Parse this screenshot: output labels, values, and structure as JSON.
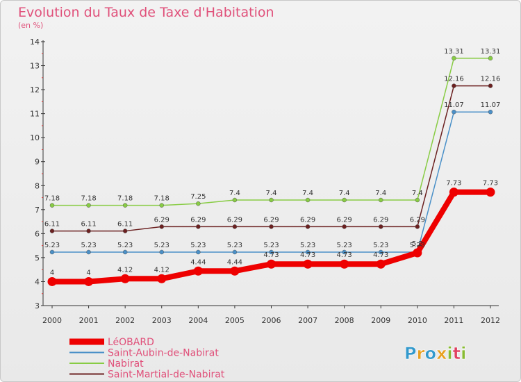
{
  "title": "Evolution du Taux de Taxe d'Habitation",
  "subtitle": "(en %)",
  "logo": {
    "text": "Proxiti",
    "colors": [
      "#3399cc",
      "#e8a020",
      "#3399cc",
      "#e8a020",
      "#88bb33",
      "#e04060",
      "#88bb33"
    ]
  },
  "chart_data": {
    "type": "line",
    "title": "Evolution du Taux de Taxe d'Habitation",
    "ylabel": "(en %)",
    "xlabel": "",
    "x": [
      "2000",
      "2001",
      "2002",
      "2003",
      "2004",
      "2005",
      "2006",
      "2007",
      "2008",
      "2009",
      "2010",
      "2011",
      "2012"
    ],
    "ylim": [
      3,
      14
    ],
    "yticks": [
      3,
      4,
      5,
      6,
      7,
      8,
      9,
      10,
      11,
      12,
      13,
      14
    ],
    "grid": false,
    "legend": "bottom-left",
    "series": [
      {
        "name": "LéOBARD",
        "color": "#ee0000",
        "values": [
          4,
          4,
          4.12,
          4.12,
          4.44,
          4.44,
          4.73,
          4.73,
          4.73,
          4.73,
          5.2,
          7.73,
          7.73
        ],
        "labels": [
          "4",
          "4",
          "4.12",
          "4.12",
          "4.44",
          "4.44",
          "4.73",
          "4.73",
          "4.73",
          "4.73",
          "5.2",
          "7.73",
          "7.73"
        ]
      },
      {
        "name": "Saint-Aubin-de-Nabirat",
        "color": "#4a90c8",
        "values": [
          5.23,
          5.23,
          5.23,
          5.23,
          5.23,
          5.23,
          5.23,
          5.23,
          5.23,
          5.23,
          5.23,
          11.07,
          11.07
        ],
        "labels": [
          "5.23",
          "5.23",
          "5.23",
          "5.23",
          "5.23",
          "5.23",
          "5.23",
          "5.23",
          "5.23",
          "5.23",
          "5.23",
          "11.07",
          "11.07"
        ]
      },
      {
        "name": "Nabirat",
        "color": "#88cc44",
        "values": [
          7.18,
          7.18,
          7.18,
          7.18,
          7.25,
          7.4,
          7.4,
          7.4,
          7.4,
          7.4,
          7.4,
          13.31,
          13.31
        ],
        "labels": [
          "7.18",
          "7.18",
          "7.18",
          "7.18",
          "7.25",
          "7.4",
          "7.4",
          "7.4",
          "7.4",
          "7.4",
          "7.4",
          "13.31",
          "13.31"
        ]
      },
      {
        "name": "Saint-Martial-de-Nabirat",
        "color": "#6b2020",
        "values": [
          6.11,
          6.11,
          6.11,
          6.29,
          6.29,
          6.29,
          6.29,
          6.29,
          6.29,
          6.29,
          6.29,
          12.16,
          12.16
        ],
        "labels": [
          "6.11",
          "6.11",
          "6.11",
          "6.29",
          "6.29",
          "6.29",
          "6.29",
          "6.29",
          "6.29",
          "6.29",
          "6.29",
          "12.16",
          "12.16"
        ]
      }
    ]
  }
}
